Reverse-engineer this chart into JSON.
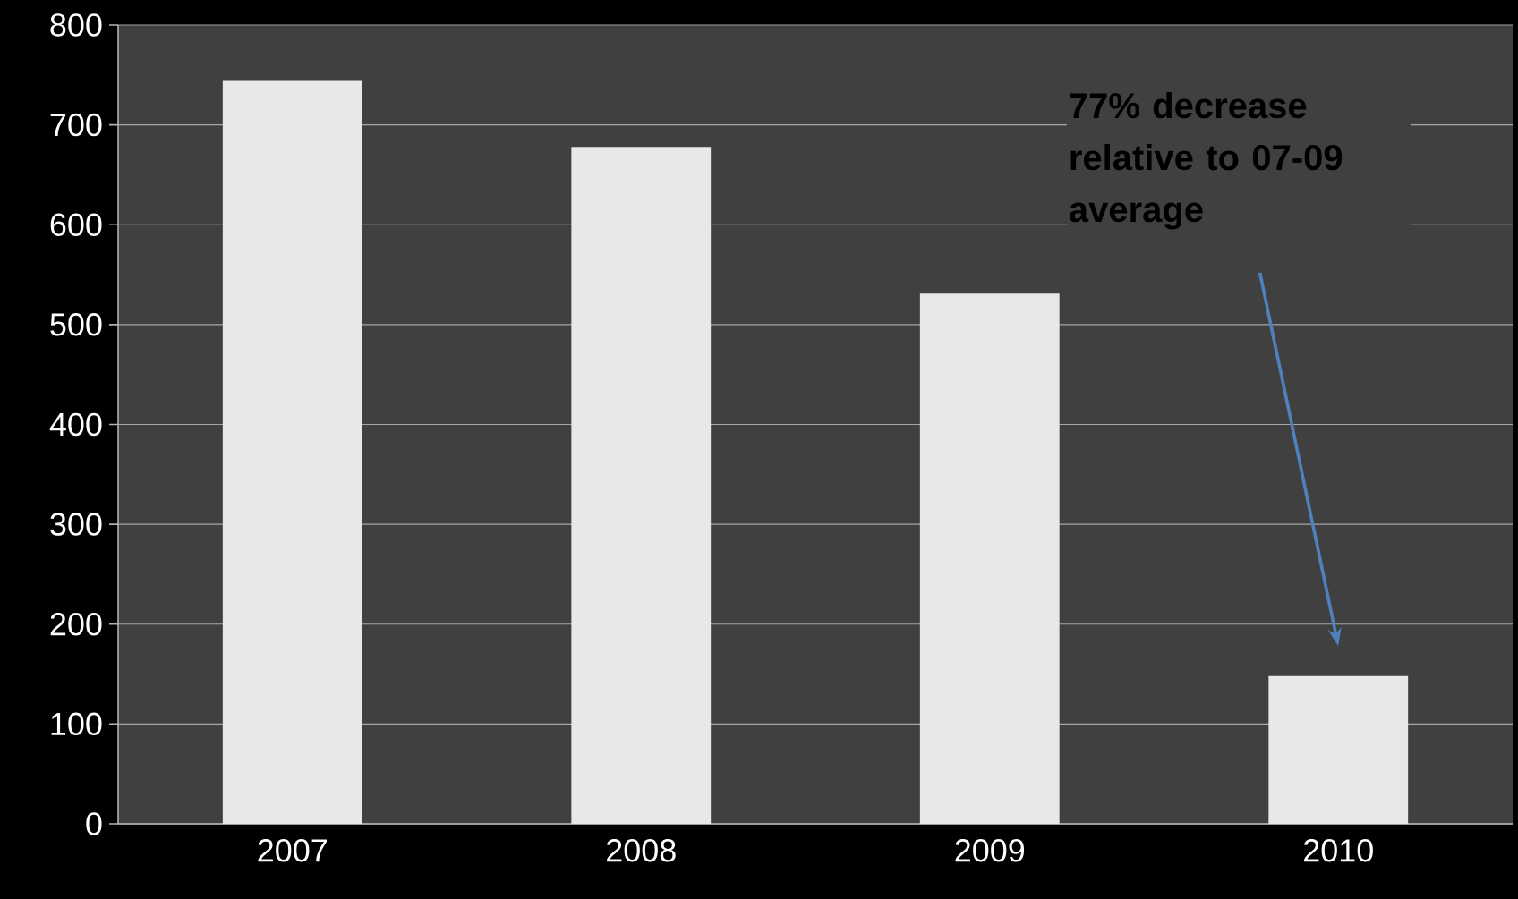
{
  "chart_data": {
    "type": "bar",
    "categories": [
      "2007",
      "2008",
      "2009",
      "2010"
    ],
    "values": [
      745,
      678,
      531,
      148
    ],
    "color": "#e8e8e8",
    "ylim": [
      0,
      800
    ],
    "yticks": [
      0,
      100,
      200,
      300,
      400,
      500,
      600,
      700,
      800
    ],
    "grid": "y",
    "annotations": [
      "77% decrease relative to 07-09 average"
    ]
  }
}
